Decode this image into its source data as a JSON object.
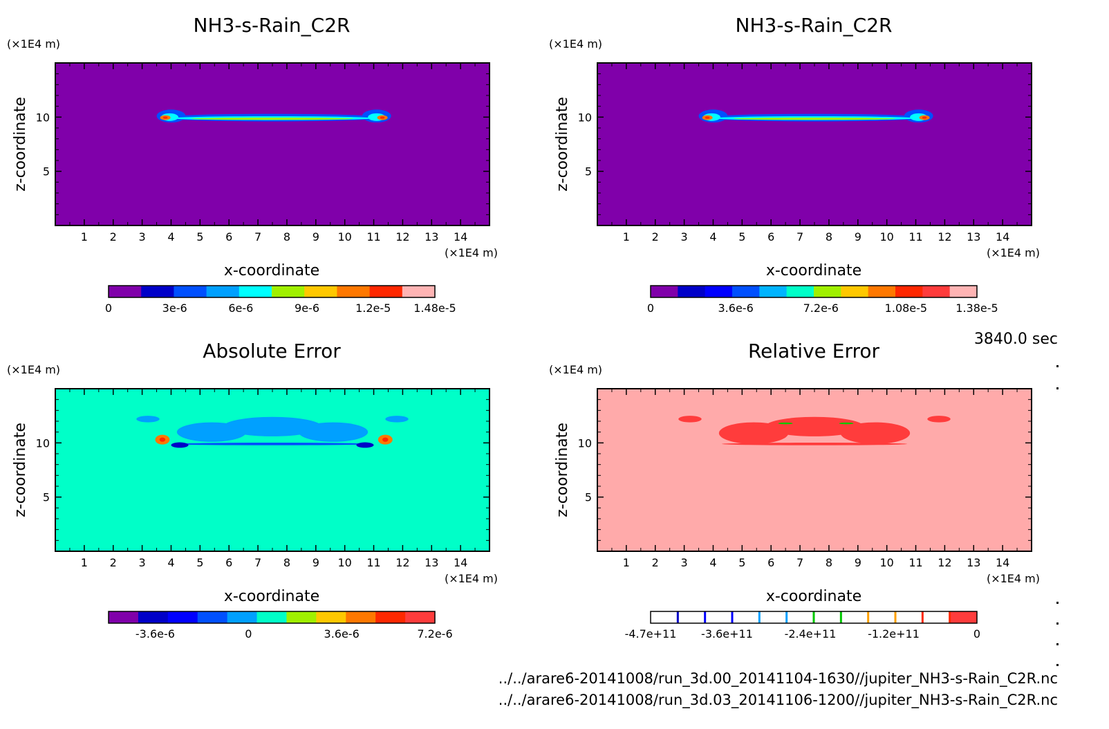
{
  "time_label": "3840.0 sec",
  "footer": [
    "../../arare6-20141008/run_3d.00_20141104-1630//jupiter_NH3-s-Rain_C2R.nc",
    "../../arare6-20141008/run_3d.03_20141106-1200//jupiter_NH3-s-Rain_C2R.nc"
  ],
  "chart_data": [
    {
      "type": "heatmap",
      "title": "NH3-s-Rain_C2R",
      "xlabel": "x-coordinate",
      "ylabel": "z-coordinate",
      "x_unit": "(×1E4 m)",
      "y_unit": "(×1E4 m)",
      "xlim": [
        0,
        15
      ],
      "ylim": [
        0,
        15
      ],
      "x_ticks": [
        1,
        2,
        3,
        4,
        5,
        6,
        7,
        8,
        9,
        10,
        11,
        12,
        13,
        14
      ],
      "y_ticks": [
        5,
        10
      ],
      "background_color": "#8000aa",
      "field": "rain",
      "colorbar": {
        "colors": [
          "#8000aa",
          "#0000c8",
          "#0050ff",
          "#00a0ff",
          "#00ffff",
          "#a0f000",
          "#ffc800",
          "#ff7800",
          "#ff2800",
          "#ffb4b4"
        ],
        "tick_labels": [
          "0",
          "3e-6",
          "6e-6",
          "9e-6",
          "1.2e-5",
          "1.48e-5"
        ],
        "tick_values": [
          0,
          3e-06,
          6e-06,
          9e-06,
          1.2e-05,
          1.48e-05
        ],
        "range": [
          0,
          1.48e-05
        ]
      }
    },
    {
      "type": "heatmap",
      "title": "NH3-s-Rain_C2R",
      "xlabel": "x-coordinate",
      "ylabel": "z-coordinate",
      "x_unit": "(×1E4 m)",
      "y_unit": "(×1E4 m)",
      "xlim": [
        0,
        15
      ],
      "ylim": [
        0,
        15
      ],
      "x_ticks": [
        1,
        2,
        3,
        4,
        5,
        6,
        7,
        8,
        9,
        10,
        11,
        12,
        13,
        14
      ],
      "y_ticks": [
        5,
        10
      ],
      "background_color": "#8000aa",
      "field": "rain",
      "colorbar": {
        "colors": [
          "#8000aa",
          "#0000c8",
          "#0000ff",
          "#0050ff",
          "#00b4ff",
          "#00ffc8",
          "#a0f000",
          "#ffc800",
          "#ff7800",
          "#ff2800",
          "#ff3c3c",
          "#ffb4b4"
        ],
        "tick_labels": [
          "0",
          "3.6e-6",
          "7.2e-6",
          "1.08e-5",
          "1.38e-5"
        ],
        "tick_values": [
          0,
          3.6e-06,
          7.2e-06,
          1.08e-05,
          1.38e-05
        ],
        "range": [
          0,
          1.38e-05
        ]
      }
    },
    {
      "type": "heatmap",
      "title": "Absolute Error",
      "xlabel": "x-coordinate",
      "ylabel": "z-coordinate",
      "x_unit": "(×1E4 m)",
      "y_unit": "(×1E4 m)",
      "xlim": [
        0,
        15
      ],
      "ylim": [
        0,
        15
      ],
      "x_ticks": [
        1,
        2,
        3,
        4,
        5,
        6,
        7,
        8,
        9,
        10,
        11,
        12,
        13,
        14
      ],
      "y_ticks": [
        5,
        10
      ],
      "background_color": "#00ffc8",
      "field": "abs",
      "colorbar": {
        "colors": [
          "#8000aa",
          "#0000c8",
          "#0000ff",
          "#0050ff",
          "#00a0ff",
          "#00ffc8",
          "#a0f000",
          "#ffc800",
          "#ff7800",
          "#ff2800",
          "#ff3c3c"
        ],
        "tick_labels": [
          "-3.6e-6",
          "0",
          "3.6e-6",
          "7.2e-6"
        ],
        "tick_values": [
          -3.6e-06,
          0,
          3.6e-06,
          7.2e-06
        ],
        "range": [
          -5.4e-06,
          7.2e-06
        ]
      }
    },
    {
      "type": "heatmap",
      "title": "Relative Error",
      "xlabel": "x-coordinate",
      "ylabel": "z-coordinate",
      "x_unit": "(×1E4 m)",
      "y_unit": "(×1E4 m)",
      "xlim": [
        0,
        15
      ],
      "ylim": [
        0,
        15
      ],
      "x_ticks": [
        1,
        2,
        3,
        4,
        5,
        6,
        7,
        8,
        9,
        10,
        11,
        12,
        13,
        14
      ],
      "y_ticks": [
        5,
        10
      ],
      "background_color": "#ffaaaa",
      "field": "rel",
      "colorbar": {
        "colors": [
          "#ffffff",
          "#ffffff",
          "#ffffff",
          "#ffffff",
          "#ffffff",
          "#ffffff",
          "#ffffff",
          "#ffffff",
          "#ffffff",
          "#ffffff",
          "#ffffff",
          "#ff3c3c"
        ],
        "separators": [
          "#0000c8",
          "#0000ff",
          "#0000ff",
          "#00a0ff",
          "#00a0ff",
          "#00c800",
          "#00c800",
          "#ffa000",
          "#ffa000",
          "#ff2800",
          "#ff2800"
        ],
        "tick_labels": [
          "-4.7e+11",
          "-3.6e+11",
          "-2.4e+11",
          "-1.2e+11",
          "0"
        ],
        "tick_values": [
          -470000000000.0,
          -360000000000.0,
          -240000000000.0,
          -120000000000.0,
          0
        ],
        "range": [
          -470000000000.0,
          0
        ]
      }
    }
  ]
}
